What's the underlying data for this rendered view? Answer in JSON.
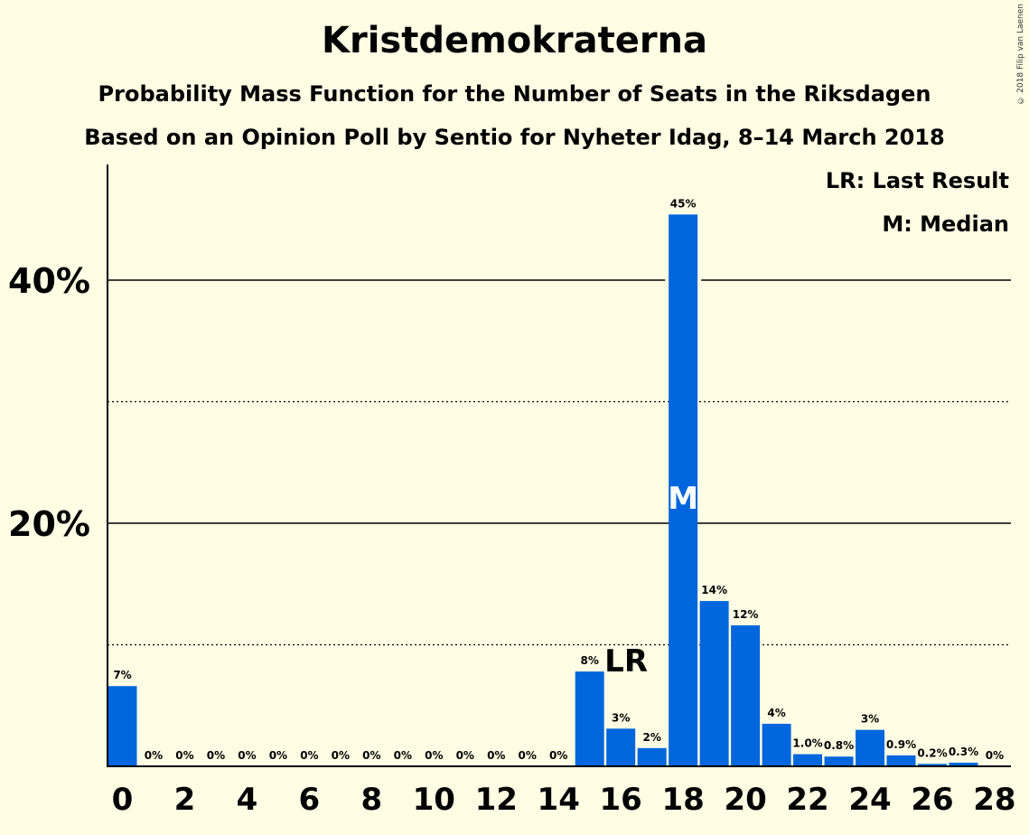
{
  "chart_data": {
    "type": "bar",
    "title": "Kristdemokraterna",
    "subtitle": "Probability Mass Function for the Number of Seats in the Riksdagen",
    "subtitle2": "Based on an Opinion Poll by Sentio for Nyheter Idag, 8–14 March 2018",
    "copyright": "© 2018 Filip van Laenen",
    "legend": [
      "LR: Last Result",
      "M: Median"
    ],
    "x": [
      0,
      1,
      2,
      3,
      4,
      5,
      6,
      7,
      8,
      9,
      10,
      11,
      12,
      13,
      14,
      15,
      16,
      17,
      18,
      19,
      20,
      21,
      22,
      23,
      24,
      25,
      26,
      27,
      28
    ],
    "values": [
      6.6,
      0,
      0,
      0,
      0,
      0,
      0,
      0,
      0,
      0,
      0,
      0,
      0,
      0,
      0,
      7.8,
      3.1,
      1.5,
      45.4,
      13.6,
      11.6,
      3.5,
      1.0,
      0.8,
      3.0,
      0.9,
      0.2,
      0.3,
      0
    ],
    "value_labels": [
      "7%",
      "0%",
      "0%",
      "0%",
      "0%",
      "0%",
      "0%",
      "0%",
      "0%",
      "0%",
      "0%",
      "0%",
      "0%",
      "0%",
      "0%",
      "8%",
      "3%",
      "2%",
      "45%",
      "14%",
      "12%",
      "4%",
      "1.0%",
      "0.8%",
      "3%",
      "0.9%",
      "0.2%",
      "0.3%",
      "0%"
    ],
    "x_tick_labels": [
      "0",
      "2",
      "4",
      "6",
      "8",
      "10",
      "12",
      "14",
      "16",
      "18",
      "20",
      "22",
      "24",
      "26",
      "28"
    ],
    "y_tick_labels": [
      "20%",
      "40%"
    ],
    "ylim": [
      0,
      49.5
    ],
    "last_result_seat": 16,
    "last_result_marker": "LR",
    "median_seat": 18,
    "median_marker": "M",
    "bar_color": "#0066DD",
    "background": "#FFFDE4",
    "gridlines": {
      "solid": [
        20,
        40
      ],
      "dotted": [
        10,
        30
      ]
    }
  }
}
